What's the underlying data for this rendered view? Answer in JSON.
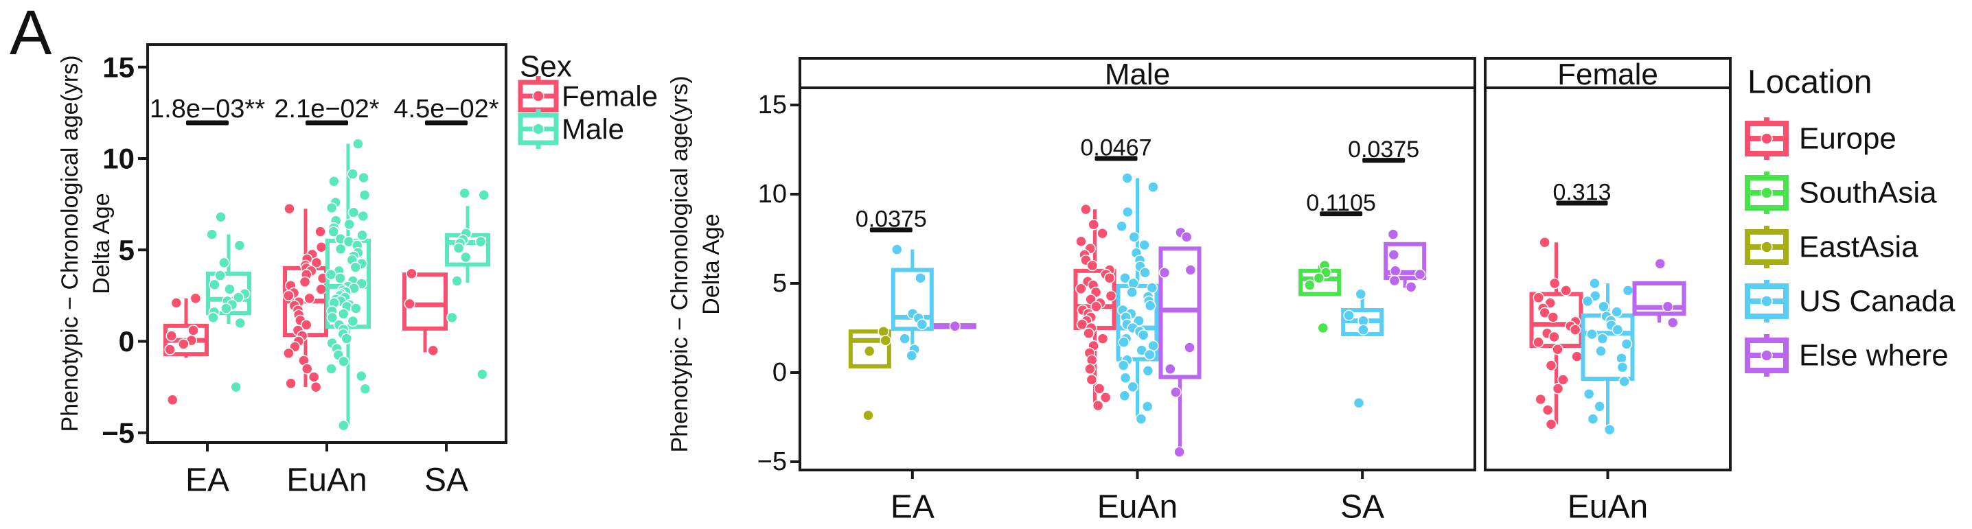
{
  "panel_label": "A",
  "colors": {
    "female_pink": "#F8506E",
    "male_mint": "#5BE7BD",
    "europe": "#F8506E",
    "south_asia": "#49E44B",
    "east_asia": "#A5AF12",
    "us_canada": "#58CEF5",
    "elsewhere": "#BA66EF",
    "axis": "#1A1A1A",
    "annotation": "#111111"
  },
  "chart_data": [
    {
      "id": "delta-age-by-population-and-sex",
      "type": "boxplot",
      "title": "",
      "ylabel_lines": [
        "Phenotypic − Chronological age(yrs)",
        "Delta Age"
      ],
      "xlabel": "",
      "ylim": [
        -5.7,
        16.2
      ],
      "grid": false,
      "yticks": [
        {
          "value": 15,
          "label": "15"
        },
        {
          "value": 10,
          "label": "10"
        },
        {
          "value": 5,
          "label": "5"
        },
        {
          "value": 0,
          "label": "0"
        },
        {
          "value": -5,
          "label": "−5"
        }
      ],
      "panels": [
        {
          "strip": null,
          "categories": [
            "EA",
            "EuAn",
            "SA"
          ]
        }
      ],
      "legend": {
        "title": "Sex",
        "position": "right",
        "entries": [
          {
            "label": "Female",
            "color": "#F8506E"
          },
          {
            "label": "Male",
            "color": "#5BE7BD"
          }
        ]
      },
      "series": [
        {
          "name": "Female",
          "color": "#F8506E",
          "boxes": [
            {
              "category": "EA",
              "q1": -0.7,
              "median": 0.05,
              "q3": 0.85,
              "whisker_low": -0.9,
              "whisker_high": 2.35,
              "points": [
                2.35,
                2.1,
                0.6,
                0.3,
                0.05,
                -0.15,
                -0.45,
                -3.2
              ]
            },
            {
              "category": "EuAn",
              "q1": 0.35,
              "median": 2.2,
              "q3": 4.0,
              "whisker_low": -2.5,
              "whisker_high": 7.25,
              "points": [
                7.25,
                6.0,
                5.15,
                4.75,
                4.5,
                4.3,
                4.15,
                4.0,
                3.85,
                3.65,
                3.45,
                3.25,
                3.05,
                2.85,
                2.65,
                2.5,
                2.35,
                2.15,
                1.95,
                1.7,
                1.45,
                1.15,
                0.9,
                0.6,
                0.3,
                0.0,
                -0.3,
                -0.65,
                -1.05,
                -1.5,
                -1.95,
                -2.3,
                -2.5
              ]
            },
            {
              "category": "SA",
              "q1": 0.7,
              "median": 2.0,
              "q3": 3.65,
              "whisker_low": -0.6,
              "whisker_high": 3.65,
              "points": [
                3.7,
                2.05,
                -0.5
              ]
            }
          ]
        },
        {
          "name": "Male",
          "color": "#5BE7BD",
          "boxes": [
            {
              "category": "EA",
              "q1": 1.55,
              "median": 2.3,
              "q3": 3.7,
              "whisker_low": 0.95,
              "whisker_high": 5.85,
              "points": [
                6.8,
                5.85,
                5.25,
                4.3,
                3.6,
                3.1,
                2.85,
                2.6,
                2.4,
                2.2,
                2.0,
                1.8,
                1.6,
                1.3,
                1.0,
                -2.5
              ]
            },
            {
              "category": "EuAn",
              "q1": 0.8,
              "median": 3.0,
              "q3": 5.5,
              "whisker_low": -4.55,
              "whisker_high": 10.8,
              "points": [
                10.8,
                9.15,
                8.95,
                8.75,
                8.0,
                7.6,
                7.3,
                7.05,
                6.85,
                6.6,
                6.4,
                6.2,
                6.0,
                5.8,
                5.6,
                5.45,
                5.25,
                5.05,
                4.85,
                4.65,
                4.45,
                4.25,
                4.05,
                3.85,
                3.65,
                3.45,
                3.3,
                3.15,
                3.0,
                2.9,
                2.8,
                2.7,
                2.6,
                2.5,
                2.4,
                2.3,
                2.2,
                2.1,
                2.0,
                1.9,
                1.8,
                1.65,
                1.5,
                1.3,
                1.1,
                0.9,
                0.65,
                0.4,
                0.15,
                -0.1,
                -0.4,
                -0.75,
                -1.1,
                -1.5,
                -1.9,
                -2.6,
                -4.6
              ]
            },
            {
              "category": "SA",
              "q1": 4.2,
              "median": 5.4,
              "q3": 5.8,
              "whisker_low": 3.2,
              "whisker_high": 7.4,
              "points": [
                8.1,
                8.0,
                5.9,
                5.55,
                5.45,
                5.35,
                5.1,
                4.6,
                3.3,
                1.3,
                -1.8
              ]
            }
          ]
        }
      ],
      "annotations": [
        {
          "text": "1.8e−03**",
          "category": "EA",
          "from": "Female",
          "to": "Male",
          "text_y": 12.7,
          "bar_y": 11.95
        },
        {
          "text": "2.1e−02*",
          "category": "EuAn",
          "from": "Female",
          "to": "Male",
          "text_y": 12.7,
          "bar_y": 11.95
        },
        {
          "text": "4.5e−02*",
          "category": "SA",
          "from": "Female",
          "to": "Male",
          "text_y": 12.7,
          "bar_y": 11.95
        }
      ]
    },
    {
      "id": "delta-age-by-population-and-location-faceted-by-sex",
      "type": "boxplot",
      "title": "",
      "ylabel_lines": [
        "Phenotypic − Chronological age(yrs)",
        "Delta Age"
      ],
      "xlabel": "",
      "ylim": [
        -5.5,
        16.0
      ],
      "grid": false,
      "yticks": [
        {
          "value": 15,
          "label": "15"
        },
        {
          "value": 10,
          "label": "10"
        },
        {
          "value": 5,
          "label": "5"
        },
        {
          "value": 0,
          "label": "0"
        },
        {
          "value": -5,
          "label": "−5"
        }
      ],
      "panels": [
        {
          "strip": "Male",
          "categories": [
            "EA",
            "EuAn",
            "SA"
          ]
        },
        {
          "strip": "Female",
          "categories": [
            "EuAn"
          ]
        }
      ],
      "legend": {
        "title": "Location",
        "position": "right",
        "entries": [
          {
            "label": "Europe",
            "color": "#F8506E"
          },
          {
            "label": "SouthAsia",
            "color": "#49E44B"
          },
          {
            "label": "EastAsia",
            "color": "#A5AF12"
          },
          {
            "label": "US Canada",
            "color": "#58CEF5"
          },
          {
            "label": "Else where",
            "color": "#BA66EF"
          }
        ]
      },
      "series": [
        {
          "name": "Europe",
          "color": "#F8506E",
          "boxes": [
            {
              "panel": "Male",
              "category": "EuAn",
              "q1": 2.5,
              "median": 3.7,
              "q3": 5.7,
              "whisker_low": -1.85,
              "whisker_high": 9.15,
              "points": [
                9.15,
                8.3,
                7.8,
                7.35,
                6.95,
                6.6,
                6.3,
                6.0,
                5.75,
                5.5,
                5.3,
                5.1,
                4.9,
                4.7,
                4.5,
                4.3,
                4.1,
                3.9,
                3.7,
                3.5,
                3.3,
                3.1,
                2.9,
                2.7,
                2.5,
                2.2,
                1.9,
                1.5,
                1.1,
                0.7,
                0.2,
                -0.4,
                -0.9,
                -1.4,
                -1.85
              ]
            },
            {
              "panel": "Female",
              "category": "EuAn",
              "q1": 1.5,
              "median": 2.7,
              "q3": 4.4,
              "whisker_low": -2.9,
              "whisker_high": 7.3,
              "points": [
                7.3,
                5.0,
                4.6,
                4.2,
                3.9,
                3.6,
                3.35,
                3.1,
                2.85,
                2.6,
                2.4,
                2.2,
                2.0,
                1.7,
                1.3,
                0.9,
                0.4,
                -0.4,
                -0.9,
                -1.5,
                -2.1,
                -2.9
              ]
            }
          ]
        },
        {
          "name": "SouthAsia",
          "color": "#49E44B",
          "boxes": [
            {
              "panel": "Male",
              "category": "SA",
              "q1": 4.4,
              "median": 5.25,
              "q3": 5.7,
              "whisker_low": 4.4,
              "whisker_high": 6.0,
              "points": [
                6.0,
                5.6,
                5.3,
                4.9,
                2.5
              ]
            }
          ]
        },
        {
          "name": "EastAsia",
          "color": "#A5AF12",
          "boxes": [
            {
              "panel": "Male",
              "category": "EA",
              "q1": 0.35,
              "median": 1.8,
              "q3": 2.3,
              "whisker_low": 0.35,
              "whisker_high": 2.3,
              "points": [
                2.3,
                1.8,
                1.2,
                -2.4
              ]
            }
          ]
        },
        {
          "name": "US Canada",
          "color": "#58CEF5",
          "boxes": [
            {
              "panel": "Male",
              "category": "EA",
              "q1": 2.45,
              "median": 3.1,
              "q3": 5.75,
              "whisker_low": 0.95,
              "whisker_high": 6.9,
              "points": [
                6.9,
                5.3,
                3.3,
                3.05,
                2.7,
                1.9,
                1.3,
                0.95
              ]
            },
            {
              "panel": "Male",
              "category": "EuAn",
              "q1": 0.75,
              "median": 2.5,
              "q3": 4.85,
              "whisker_low": -2.6,
              "whisker_high": 10.9,
              "points": [
                10.9,
                10.4,
                9.0,
                8.2,
                7.6,
                7.15,
                6.7,
                6.3,
                5.95,
                5.6,
                5.3,
                5.0,
                4.75,
                4.5,
                4.25,
                4.0,
                3.75,
                3.5,
                3.3,
                3.1,
                2.9,
                2.7,
                2.5,
                2.3,
                2.1,
                1.9,
                1.7,
                1.5,
                1.25,
                1.0,
                0.7,
                0.4,
                0.1,
                -0.3,
                -0.8,
                -1.3,
                -1.9,
                -2.6
              ]
            },
            {
              "panel": "Male",
              "category": "SA",
              "q1": 2.15,
              "median": 2.9,
              "q3": 3.5,
              "whisker_low": 2.15,
              "whisker_high": 4.4,
              "points": [
                4.4,
                3.2,
                2.9,
                2.4,
                -1.7
              ]
            },
            {
              "panel": "Female",
              "category": "EuAn",
              "q1": -0.35,
              "median": 2.2,
              "q3": 3.2,
              "whisker_low": -3.2,
              "whisker_high": 5.0,
              "points": [
                5.0,
                4.6,
                4.3,
                4.0,
                3.7,
                3.4,
                3.15,
                2.9,
                2.65,
                2.4,
                2.15,
                1.9,
                1.6,
                1.2,
                0.8,
                0.3,
                -0.5,
                -1.2,
                -1.9,
                -2.6,
                -3.2
              ]
            }
          ]
        },
        {
          "name": "Else where",
          "color": "#BA66EF",
          "boxes": [
            {
              "panel": "Male",
              "category": "EA",
              "q1": 2.55,
              "median": 2.6,
              "q3": 2.65,
              "whisker_low": 2.55,
              "whisker_high": 2.65,
              "points": [
                2.6
              ]
            },
            {
              "panel": "Male",
              "category": "EuAn",
              "q1": -0.25,
              "median": 3.5,
              "q3": 6.95,
              "whisker_low": -4.45,
              "whisker_high": 6.95,
              "points": [
                7.85,
                7.6,
                5.75,
                5.6,
                1.4,
                0.2,
                -1.1,
                -4.45
              ]
            },
            {
              "panel": "Male",
              "category": "SA",
              "q1": 5.3,
              "median": 5.6,
              "q3": 7.2,
              "whisker_low": 4.75,
              "whisker_high": 7.2,
              "points": [
                7.75,
                6.6,
                5.7,
                5.5,
                5.15,
                4.8
              ]
            },
            {
              "panel": "Female",
              "category": "EuAn",
              "q1": 3.3,
              "median": 3.65,
              "q3": 5.0,
              "whisker_low": 2.8,
              "whisker_high": 5.0,
              "points": [
                6.1,
                3.7,
                2.8
              ]
            }
          ]
        }
      ],
      "annotations": [
        {
          "text": "0.0375",
          "panel": "Male",
          "category": "EA",
          "from": "EastAsia",
          "to": "US Canada",
          "text_y": 8.6,
          "bar_y": 8.0
        },
        {
          "text": "0.0467",
          "panel": "Male",
          "category": "EuAn",
          "from": "Europe",
          "to": "US Canada",
          "text_y": 12.6,
          "bar_y": 12.0
        },
        {
          "text": "0.1105",
          "panel": "Male",
          "category": "SA",
          "from": "SouthAsia",
          "to": "US Canada",
          "text_y": 9.5,
          "bar_y": 8.9
        },
        {
          "text": "0.0375",
          "panel": "Male",
          "category": "SA",
          "from": "US Canada",
          "to": "Else where",
          "text_y": 12.5,
          "bar_y": 11.9
        },
        {
          "text": "0.313",
          "panel": "Female",
          "category": "EuAn",
          "from": "Europe",
          "to": "US Canada",
          "text_y": 10.1,
          "bar_y": 9.5
        }
      ]
    }
  ]
}
